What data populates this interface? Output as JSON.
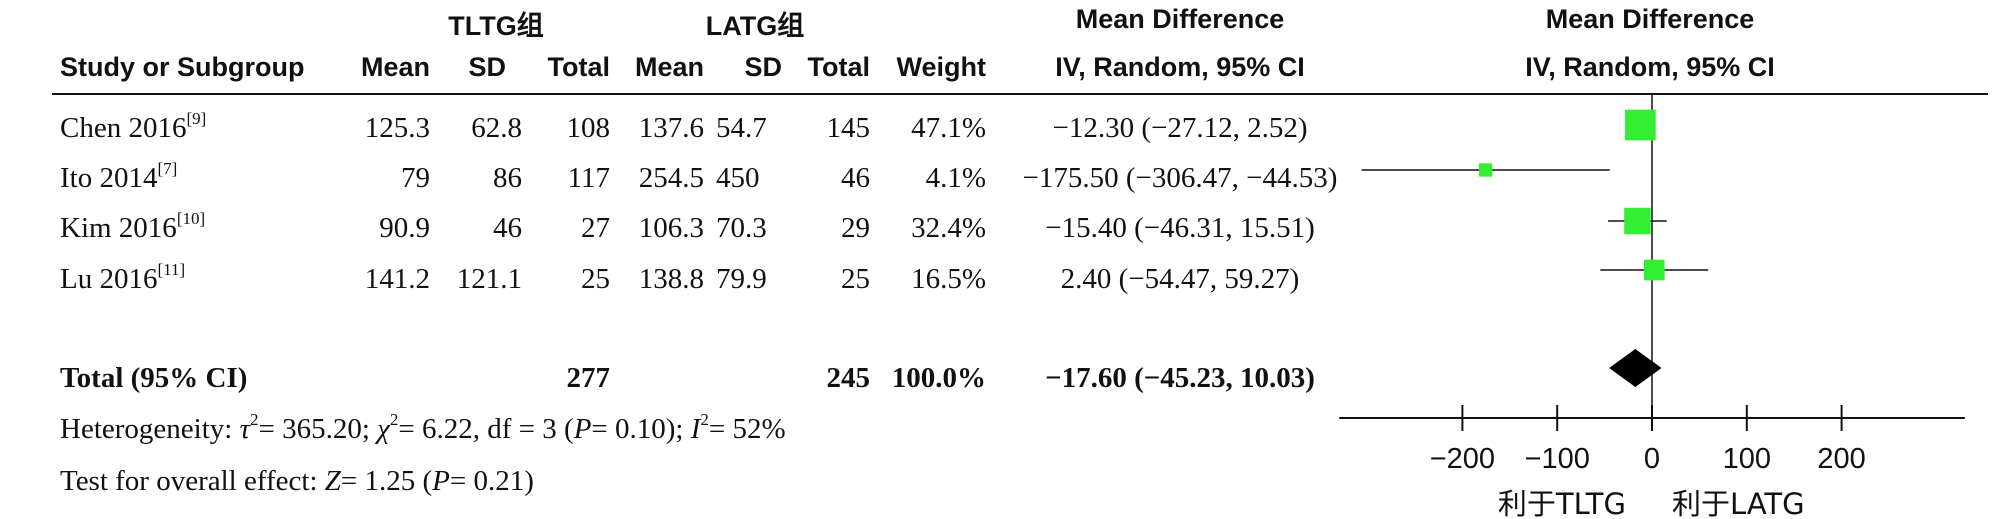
{
  "headers": {
    "group_exp": "TLTG组",
    "group_ctrl": "LATG组",
    "md_top": "Mean Difference",
    "md_bottom": "IV, Random, 95% CI",
    "plot_top": "Mean Difference",
    "plot_bottom": "IV, Random, 95% CI",
    "study": "Study or Subgroup",
    "mean": "Mean",
    "sd": "SD",
    "total": "Total",
    "weight": "Weight"
  },
  "studies": [
    {
      "name": "Chen 2016",
      "ref": "[9]",
      "exp_mean": "125.3",
      "exp_sd": "62.8",
      "exp_total": "108",
      "ctrl_mean": "137.6",
      "ctrl_sd": "54.7",
      "ctrl_total": "145",
      "weight": "47.1%",
      "ci_text": "−12.30 (−27.12, 2.52)",
      "md": -12.3,
      "lo": -27.12,
      "hi": 2.52,
      "w": 47.1
    },
    {
      "name": "Ito 2014",
      "ref": "[7]",
      "exp_mean": "79",
      "exp_sd": "86",
      "exp_total": "117",
      "ctrl_mean": "254.5",
      "ctrl_sd": "450",
      "ctrl_total": "46",
      "weight": "4.1%",
      "ci_text": "−175.50 (−306.47, −44.53)",
      "md": -175.5,
      "lo": -306.47,
      "hi": -44.53,
      "w": 4.1
    },
    {
      "name": "Kim 2016",
      "ref": "[10]",
      "exp_mean": "90.9",
      "exp_sd": "46",
      "exp_total": "27",
      "ctrl_mean": "106.3",
      "ctrl_sd": "70.3",
      "ctrl_total": "29",
      "weight": "32.4%",
      "ci_text": "−15.40 (−46.31, 15.51)",
      "md": -15.4,
      "lo": -46.31,
      "hi": 15.51,
      "w": 32.4
    },
    {
      "name": "Lu 2016",
      "ref": "[11]",
      "exp_mean": "141.2",
      "exp_sd": "121.1",
      "exp_total": "25",
      "ctrl_mean": "138.8",
      "ctrl_sd": "79.9",
      "ctrl_total": "25",
      "weight": "16.5%",
      "ci_text": "2.40 (−54.47, 59.27)",
      "md": 2.4,
      "lo": -54.47,
      "hi": 59.27,
      "w": 16.5
    }
  ],
  "total": {
    "label": "Total (95% CI)",
    "exp_total": "277",
    "ctrl_total": "245",
    "weight": "100.0%",
    "ci_text": "−17.60 (−45.23, 10.03)",
    "md": -17.6,
    "lo": -45.23,
    "hi": 10.03
  },
  "heterogeneity": {
    "prefix": "Heterogeneity: ",
    "tau": "τ",
    "tau_val": "= 365.20; ",
    "chi": "χ",
    "chi_val": "= 6.22, df = 3 (",
    "p": "P",
    "p_val": "= 0.10); ",
    "i": "I",
    "i_val": "= 52%",
    "sup": "2"
  },
  "overall": {
    "prefix": "Test for overall effect: ",
    "z": "Z",
    "z_val": "= 1.25 (",
    "p": "P",
    "p_val": "= 0.21)"
  },
  "axis": {
    "ticks": [
      -200,
      -100,
      0,
      100,
      200
    ],
    "tick_labels": [
      "−200",
      "−100",
      "0",
      "100",
      "200"
    ],
    "favours_left": "利于TLTG",
    "favours_right": "利于LATG"
  },
  "colors": {
    "marker": "#33ee33",
    "diamond": "#000000",
    "line": "#111111"
  },
  "chart_data": {
    "type": "forest",
    "categories": [
      "Chen 2016",
      "Ito 2014",
      "Kim 2016",
      "Lu 2016"
    ],
    "series": [
      {
        "values": [
          -12.3,
          -175.5,
          -15.4,
          2.4
        ],
        "ci_low": [
          -27.12,
          -306.47,
          -46.31,
          -54.47
        ],
        "ci_high": [
          2.52,
          -44.53,
          15.51,
          59.27
        ],
        "weights": [
          47.1,
          4.1,
          32.4,
          16.5
        ]
      }
    ],
    "pooled": {
      "value": -17.6,
      "ci_low": -45.23,
      "ci_high": 10.03
    },
    "xlim": [
      -330,
      330
    ],
    "xticks": [
      -200,
      -100,
      0,
      100,
      200
    ],
    "grid": false,
    "legend": "none"
  }
}
